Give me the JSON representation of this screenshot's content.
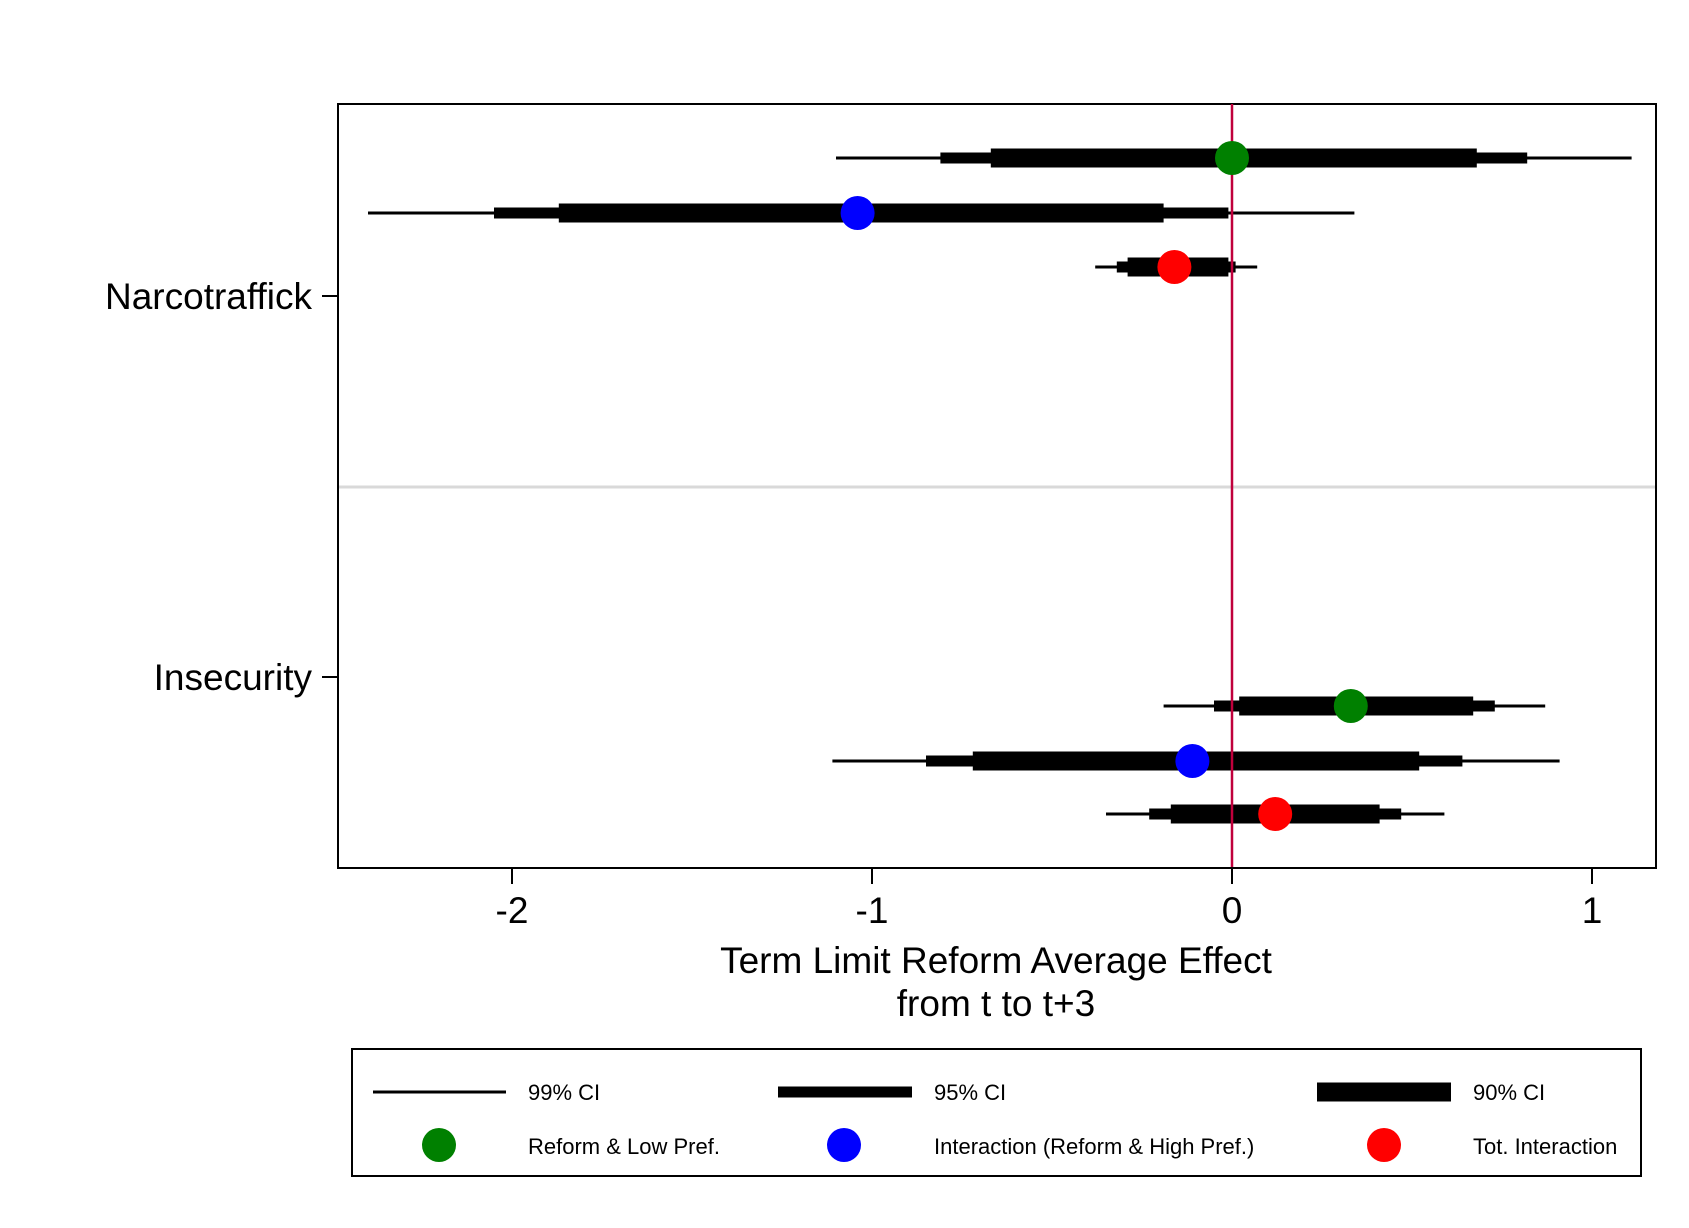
{
  "chart_data": {
    "type": "coefficient-plot",
    "title": "",
    "xlabel_lines": [
      "Term Limit Reform Average Effect",
      "from t to t+3"
    ],
    "xlim": [
      -2.48,
      1.19
    ],
    "xticks": [
      -2,
      -1,
      0,
      1
    ],
    "xtick_labels": [
      "-2",
      "-1",
      "0",
      "1"
    ],
    "reference_line": 0,
    "reference_color": "#c0003c",
    "groups": [
      {
        "name": "Narcotraffick",
        "estimates": [
          {
            "series": "Reform & Low Pref.",
            "color": "#008000",
            "point": 0.0,
            "ci90": [
              -0.67,
              0.68
            ],
            "ci95": [
              -0.81,
              0.82
            ],
            "ci99": [
              -1.1,
              1.11
            ]
          },
          {
            "series": "Interaction (Reform & High Pref.)",
            "color": "#0000ff",
            "point": -1.04,
            "ci90": [
              -1.87,
              -0.19
            ],
            "ci95": [
              -2.05,
              -0.01
            ],
            "ci99": [
              -2.4,
              0.34
            ]
          },
          {
            "series": "Tot. Interaction",
            "color": "#ff0000",
            "point": -0.16,
            "ci90": [
              -0.29,
              -0.01
            ],
            "ci95": [
              -0.32,
              0.01
            ],
            "ci99": [
              -0.38,
              0.07
            ]
          }
        ]
      },
      {
        "name": "Insecurity",
        "estimates": [
          {
            "series": "Reform & Low Pref.",
            "color": "#008000",
            "point": 0.33,
            "ci90": [
              0.02,
              0.67
            ],
            "ci95": [
              -0.05,
              0.73
            ],
            "ci99": [
              -0.19,
              0.87
            ]
          },
          {
            "series": "Interaction (Reform & High Pref.)",
            "color": "#0000ff",
            "point": -0.11,
            "ci90": [
              -0.72,
              0.52
            ],
            "ci95": [
              -0.85,
              0.64
            ],
            "ci99": [
              -1.11,
              0.91
            ]
          },
          {
            "series": "Tot. Interaction",
            "color": "#ff0000",
            "point": 0.12,
            "ci90": [
              -0.17,
              0.41
            ],
            "ci95": [
              -0.23,
              0.47
            ],
            "ci99": [
              -0.35,
              0.59
            ]
          }
        ]
      }
    ],
    "legend": {
      "position": "bottom",
      "line_entries": [
        {
          "label": "99% CI",
          "kind": "ci99"
        },
        {
          "label": "95% CI",
          "kind": "ci95"
        },
        {
          "label": "90% CI",
          "kind": "ci90"
        }
      ],
      "marker_entries": [
        {
          "label": "Reform & Low Pref.",
          "color": "#008000"
        },
        {
          "label": "Interaction (Reform & High Pref.)",
          "color": "#0000ff"
        },
        {
          "label": "Tot. Interaction",
          "color": "#ff0000"
        }
      ]
    }
  }
}
